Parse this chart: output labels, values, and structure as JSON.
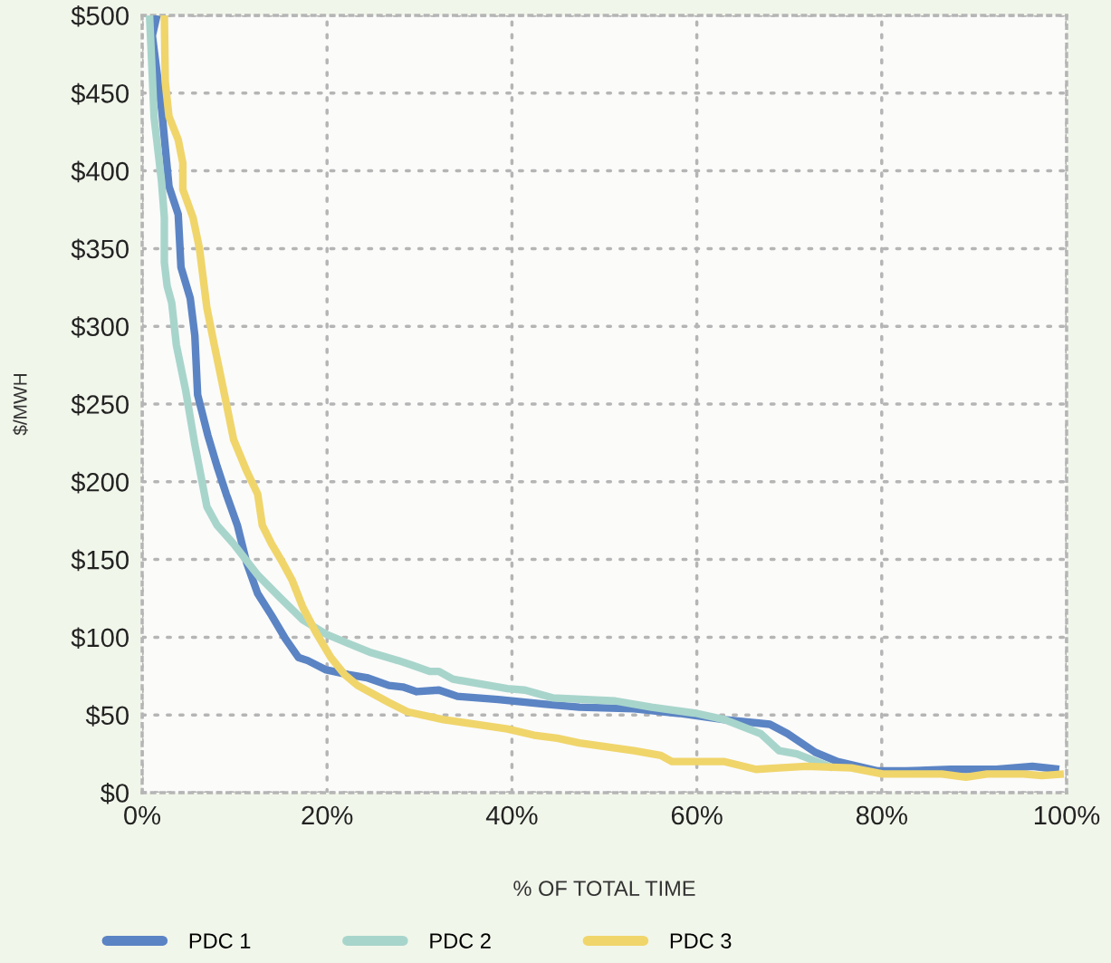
{
  "chart_data": {
    "type": "line",
    "xlabel": "% OF TOTAL TIME",
    "ylabel": "$/MWH",
    "xlim": [
      0,
      100
    ],
    "ylim": [
      0,
      500
    ],
    "xticks": [
      {
        "value": 0,
        "label": "0%"
      },
      {
        "value": 20,
        "label": "20%"
      },
      {
        "value": 40,
        "label": "40%"
      },
      {
        "value": 60,
        "label": "60%"
      },
      {
        "value": 80,
        "label": "80%"
      },
      {
        "value": 100,
        "label": "100%"
      }
    ],
    "yticks": [
      {
        "value": 0,
        "label": "$0"
      },
      {
        "value": 50,
        "label": "$50"
      },
      {
        "value": 100,
        "label": "$100"
      },
      {
        "value": 150,
        "label": "$150"
      },
      {
        "value": 200,
        "label": "$200"
      },
      {
        "value": 250,
        "label": "$250"
      },
      {
        "value": 300,
        "label": "$300"
      },
      {
        "value": 350,
        "label": "$350"
      },
      {
        "value": 400,
        "label": "$400"
      },
      {
        "value": 450,
        "label": "$450"
      },
      {
        "value": 500,
        "label": "$500"
      }
    ],
    "grid": true,
    "legend": "bottom",
    "marker": "none",
    "line_style": "solid",
    "series": [
      {
        "name": "PDC 1",
        "color": "#5b84c4",
        "x": [
          1.6,
          1.1,
          2.1,
          2.9,
          3.9,
          4.2,
          5.2,
          5.7,
          6.0,
          7.1,
          8.1,
          9.1,
          10.3,
          11.3,
          12.5,
          14.0,
          15.5,
          16.9,
          17.9,
          19.9,
          22.3,
          24.3,
          26.7,
          28.2,
          29.7,
          32.1,
          34.1,
          38.5,
          43.4,
          47.3,
          53.2,
          58.1,
          63.0,
          67.9,
          69.8,
          72.8,
          75.2,
          79.6,
          82.6,
          87.5,
          92.4,
          96.3,
          99.2
        ],
        "values": [
          500,
          487,
          440,
          390,
          372,
          338,
          318,
          294,
          256,
          230,
          210,
          192,
          172,
          148,
          128,
          114,
          99,
          87,
          85,
          79,
          76,
          74,
          69,
          68,
          65,
          66,
          62,
          60,
          57,
          55,
          54,
          51,
          47,
          44,
          38,
          26,
          20,
          14,
          14,
          15,
          15,
          17,
          15
        ]
      },
      {
        "name": "PDC 2",
        "color": "#a8d5cb",
        "x": [
          0.8,
          1.3,
          2.1,
          2.4,
          2.4,
          2.7,
          3.2,
          3.7,
          4.7,
          5.7,
          7.0,
          8.1,
          9.9,
          12.5,
          15.0,
          17.4,
          19.9,
          22.3,
          24.8,
          27.7,
          29.2,
          31.1,
          32.1,
          33.6,
          39.5,
          41.4,
          44.4,
          51.2,
          55.1,
          60.0,
          63.0,
          66.9,
          68.9,
          70.8,
          74.7
        ],
        "values": [
          500,
          434,
          393,
          370,
          341,
          326,
          315,
          288,
          259,
          224,
          184,
          172,
          160,
          140,
          125,
          111,
          102,
          96,
          90,
          85,
          82,
          78,
          78,
          73,
          67,
          66,
          61,
          59,
          55,
          51,
          47,
          38,
          27,
          25,
          16
        ]
      },
      {
        "name": "PDC 3",
        "color": "#f0d56b",
        "x": [
          2.4,
          2.5,
          2.9,
          3.9,
          4.4,
          4.4,
          5.5,
          6.2,
          7.0,
          7.8,
          8.6,
          9.9,
          11.3,
          12.5,
          13.0,
          14.0,
          15.0,
          16.2,
          17.4,
          18.9,
          20.4,
          21.9,
          23.3,
          26.7,
          28.7,
          32.6,
          36.0,
          39.5,
          42.4,
          44.9,
          47.3,
          53.2,
          56.1,
          57.3,
          63.0,
          66.4,
          68.9,
          71.8,
          76.7,
          80.1,
          86.5,
          89.1,
          91.4,
          95.3,
          97.3,
          99.7
        ],
        "values": [
          500,
          457,
          435,
          420,
          405,
          388,
          370,
          350,
          312,
          288,
          265,
          227,
          207,
          192,
          172,
          160,
          150,
          137,
          119,
          102,
          87,
          76,
          69,
          58,
          52,
          47,
          44,
          41,
          37,
          35,
          32,
          27,
          24,
          20,
          20,
          15,
          16,
          17,
          16,
          12,
          12,
          10,
          12,
          12,
          11,
          12
        ]
      }
    ]
  }
}
